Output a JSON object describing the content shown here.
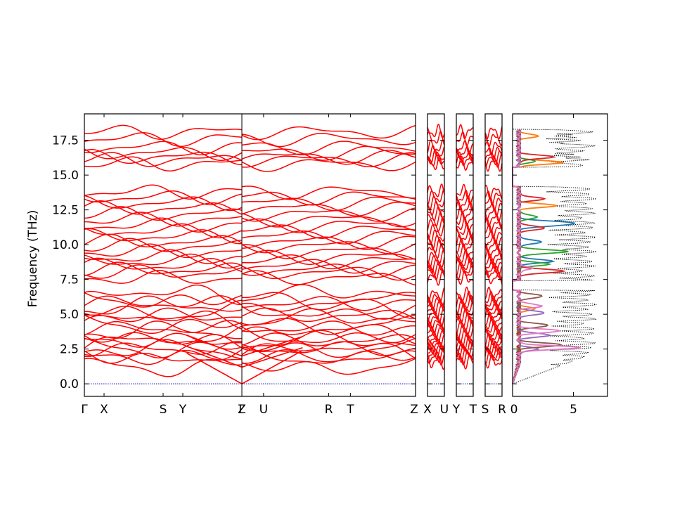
{
  "chart_data": {
    "type": "line",
    "title": "",
    "ylabel": "Frequency (THz)",
    "ylim": [
      -0.9,
      19.4
    ],
    "grid": false,
    "legend": "none",
    "y_ticks": [
      "0.0",
      "2.5",
      "5.0",
      "7.5",
      "10.0",
      "12.5",
      "15.0",
      "17.5"
    ],
    "y_tick_values": [
      0,
      2.5,
      5.0,
      7.5,
      10.0,
      12.5,
      15.0,
      17.5
    ],
    "band_color": "#ff0000",
    "zero_line_color": "#0000cc",
    "band_panels": [
      {
        "ticks": [
          {
            "label": "Γ",
            "x": 0
          },
          {
            "label": "X",
            "x": 0.5
          },
          {
            "label": "S",
            "x": 2.0
          },
          {
            "label": "Y",
            "x": 2.5
          },
          {
            "label": "Γ",
            "x": 4.0
          }
        ]
      },
      {
        "ticks": [
          {
            "label": "Z",
            "x": 0
          },
          {
            "label": "U",
            "x": 0.5
          },
          {
            "label": "R",
            "x": 2.0
          },
          {
            "label": "T",
            "x": 2.5
          },
          {
            "label": "Z",
            "x": 4.0
          }
        ]
      },
      {
        "ticks": [
          {
            "label": "X",
            "x": 0
          },
          {
            "label": "U",
            "x": 1
          }
        ]
      },
      {
        "ticks": [
          {
            "label": "Y",
            "x": 0
          },
          {
            "label": "T",
            "x": 1
          }
        ]
      },
      {
        "ticks": [
          {
            "label": "S",
            "x": 0
          },
          {
            "label": "R",
            "x": 1
          }
        ]
      }
    ],
    "band_levels_thz": [
      1.6,
      1.9,
      2.1,
      2.3,
      2.5,
      2.7,
      2.9,
      3.1,
      3.4,
      3.7,
      4.0,
      4.3,
      4.6,
      4.9,
      5.2,
      5.5,
      5.8,
      6.1,
      6.4,
      7.6,
      8.0,
      8.2,
      8.5,
      8.8,
      9.1,
      9.5,
      9.9,
      10.2,
      10.6,
      11.0,
      11.4,
      11.8,
      12.2,
      12.6,
      13.0,
      13.4,
      13.8,
      15.8,
      16.1,
      16.3,
      16.6,
      17.0,
      17.6,
      18.1
    ],
    "dos": {
      "x_ticks": [
        "0",
        "5"
      ],
      "x_tick_values": [
        0,
        5
      ],
      "xlim": [
        0,
        7.8
      ],
      "total_color": "#000000",
      "partials": [
        {
          "color": "#1f77b4",
          "peaks": [
            [
              8.8,
              2.8
            ],
            [
              10.2,
              2.0
            ],
            [
              11.4,
              2.5
            ],
            [
              11.6,
              3.5
            ]
          ]
        },
        {
          "color": "#ff7f0e",
          "peaks": [
            [
              5.4,
              1.2
            ],
            [
              12.8,
              3.0
            ],
            [
              15.9,
              3.6
            ],
            [
              17.8,
              1.5
            ]
          ]
        },
        {
          "color": "#2ca02c",
          "peaks": [
            [
              9.5,
              4.1
            ],
            [
              8.6,
              2.4
            ],
            [
              12.0,
              1.6
            ],
            [
              16.0,
              1.2
            ]
          ]
        },
        {
          "color": "#d62728",
          "peaks": [
            [
              8.1,
              3.8
            ],
            [
              11.2,
              2.2
            ],
            [
              16.3,
              2.8
            ],
            [
              13.3,
              2.0
            ]
          ]
        },
        {
          "color": "#9467bd",
          "peaks": [
            [
              3.5,
              2.6
            ],
            [
              5.1,
              2.2
            ],
            [
              2.5,
              1.5
            ]
          ]
        },
        {
          "color": "#8c564b",
          "peaks": [
            [
              2.8,
              3.6
            ],
            [
              4.2,
              2.5
            ],
            [
              6.3,
              2.0
            ]
          ]
        },
        {
          "color": "#e377c2",
          "peaks": [
            [
              2.6,
              5.0
            ],
            [
              3.8,
              3.4
            ],
            [
              5.6,
              1.9
            ],
            [
              8.3,
              1.0
            ]
          ]
        }
      ]
    }
  }
}
